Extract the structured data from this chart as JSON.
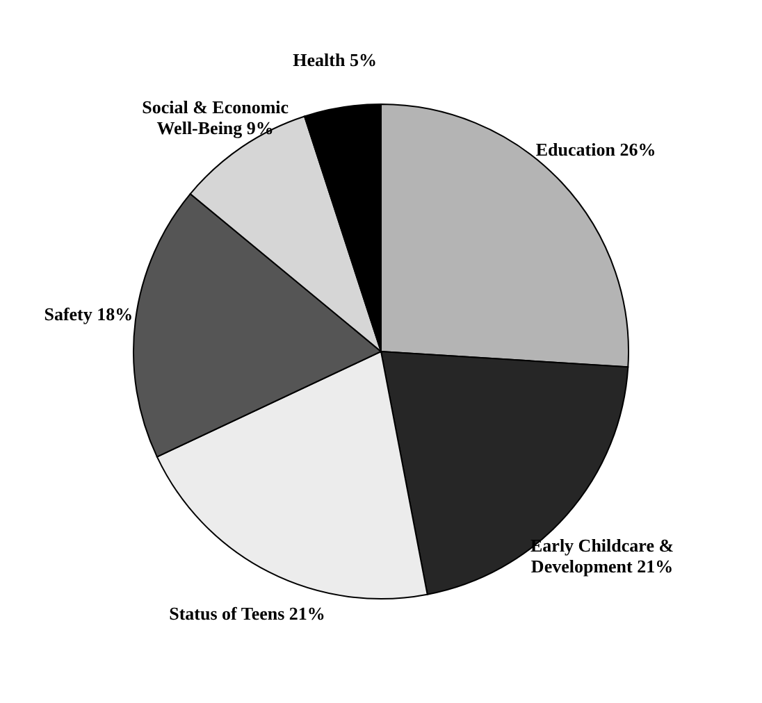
{
  "chart_data": {
    "type": "pie",
    "categories": [
      "Education",
      "Early Childcare & Development",
      "Status of Teens",
      "Safety",
      "Social & Economic Well-Being",
      "Health"
    ],
    "values": [
      26,
      21,
      21,
      18,
      9,
      5
    ],
    "value_labels": [
      "26%",
      "21%",
      "21%",
      "18%",
      "9%",
      "5%"
    ],
    "colors": [
      "#b4b4b4",
      "#262626",
      "#ececec",
      "#555555",
      "#d6d6d6",
      "#000000"
    ]
  }
}
